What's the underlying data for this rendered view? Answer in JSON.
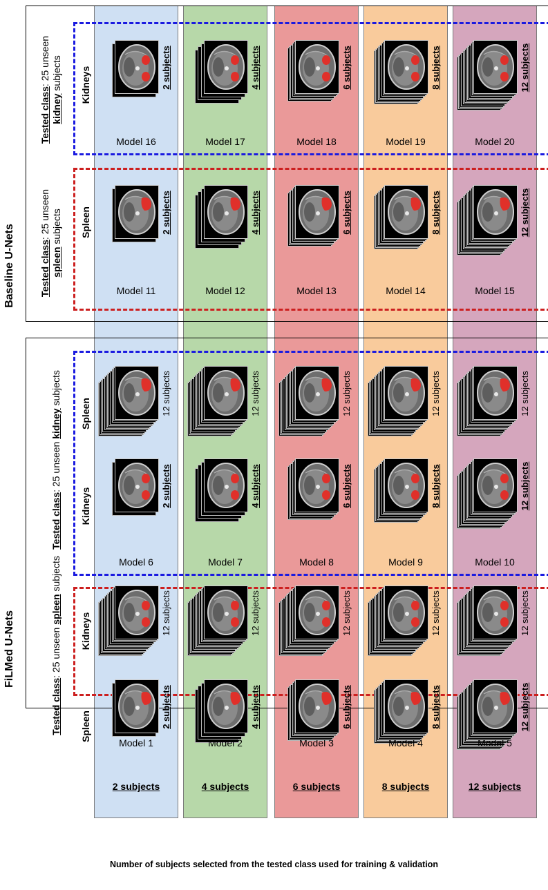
{
  "colors": {
    "col1": "#cfe0f3",
    "col2": "#b7d8a9",
    "col3": "#ea9999",
    "col4": "#f9cb9c",
    "col5": "#d5a6bd",
    "blue_dash": "#1a1ae0",
    "red_dash": "#cc1f1f",
    "organ_red": "#e0302a"
  },
  "sections": {
    "baseline": "Baseline U-Nets",
    "filmed": "FiLMed U-Nets"
  },
  "tested_classes": {
    "prefix": "Tested class",
    "suffix_kidney": ": 25 unseen ",
    "kidney_word": "kidney",
    "spleen_word": "spleen",
    "subjects_word": " subjects"
  },
  "organs": {
    "kidneys": "Kidneys",
    "spleen": "Spleen"
  },
  "models": [
    "Model 1",
    "Model 2",
    "Model 3",
    "Model 4",
    "Model 5",
    "Model 6",
    "Model 7",
    "Model 8",
    "Model 9",
    "Model 10",
    "Model 11",
    "Model 12",
    "Model 13",
    "Model 14",
    "Model 15",
    "Model 16",
    "Model 17",
    "Model 18",
    "Model 19",
    "Model 20"
  ],
  "subject_counts": [
    "2 subjects",
    "4 subjects",
    "6 subjects",
    "8 subjects",
    "12 subjects"
  ],
  "fixed_count": "12 subjects",
  "caption": "Number of subjects selected from the tested class used for training & validation"
}
